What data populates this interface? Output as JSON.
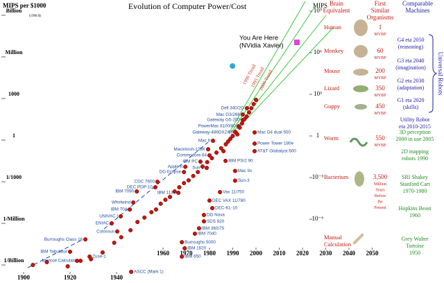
{
  "chart_data": {
    "type": "scatter",
    "title": "Evolution of Computer Power/Cost",
    "ylabel": "MIPS per $1000",
    "ylabel_note": "(1998 $)",
    "y2label": "MIPS",
    "log_scale": true,
    "xlim": [
      1890,
      2050
    ],
    "xticks": [
      1900,
      1920,
      1940,
      1960,
      1970,
      1980,
      1990,
      2000,
      2010,
      2020,
      2030,
      2040,
      2050
    ],
    "ylim": [
      1e-10,
      10000000000.0
    ],
    "yticks": [
      {
        "value": 1000000000.0,
        "label": "Billion"
      },
      {
        "value": 1000000.0,
        "label": "Million"
      },
      1000,
      1,
      {
        "value": 0.001,
        "label": "1/1000"
      },
      {
        "value": 1e-06,
        "label": "1/Million"
      },
      {
        "value": 1e-09,
        "label": "1/Billion"
      }
    ],
    "y2lim": [
      1e-10,
      10000000000.0
    ],
    "y2ticks": [
      {
        "value": 1000000000.0,
        "label": "10⁹"
      },
      {
        "value": 1000000.0,
        "label": "10⁶"
      },
      {
        "value": 1000,
        "label": "10³"
      },
      1,
      {
        "value": 0.001,
        "label": "10⁻³"
      },
      {
        "value": 1e-06,
        "label": "10⁻⁶"
      }
    ],
    "color": "#c8160e",
    "label_color": "#1f4a9a",
    "points": {
      "labels": [
        "Dell 340/2G",
        "Mac G3/266",
        "Gateway G5-200",
        "PowerMac 8100/80",
        "Gateway-486DX2/66",
        "Mac II",
        "Macintosh-128K",
        "Commodore 64",
        "IBM PC",
        "Apple II",
        "Sun-2",
        "DG Eclipse",
        "CDC 7600",
        "DEC PDP-10",
        "IBM 1130",
        "IBM 7090",
        "Whirlwind",
        "IBM 704",
        "UNIVAC I",
        "ENIAC",
        "Colossus",
        "Burroughs Class 16",
        "IBM Tabulator",
        "Monroe Calculator",
        "Mac G4 dual 500",
        "Power Tower 180e",
        "AT&T Globalyst 600",
        "IBM PS/2 90",
        "Mac IIx",
        "Sun-3",
        "Vax 11/750",
        "DEC VAX 11/780",
        "DEC-KL-10",
        "DG Nova",
        "SDS 920",
        "IBM 360/75",
        "IBM 7040",
        "Burroughs 5000",
        "IBM 1620",
        "IBM 650",
        "Zuse-1",
        "ASCC (Mark 1)",
        null,
        null,
        null,
        null,
        null,
        null,
        null,
        null,
        null,
        null,
        null,
        null,
        null,
        null,
        null,
        null,
        null,
        null,
        null,
        null,
        null,
        null,
        null,
        null,
        null,
        null,
        null,
        null,
        null,
        null,
        null,
        null,
        null,
        null,
        null,
        null,
        null,
        null,
        null,
        null,
        null,
        null
      ],
      "x": [
        1996.1,
        1994.3,
        1994.3,
        1992.5,
        1991.3,
        1981.5,
        1979.4,
        1980,
        1976.1,
        1969.6,
        1978.8,
        1969,
        1957.6,
        1956.7,
        1966.6,
        1948.7,
        1947.2,
        1945.7,
        1941.8,
        1937.9,
        1940.3,
        1926.6,
        1920,
        1924.5,
        1999.4,
        1999.4,
        1999.4,
        1986.9,
        1991,
        1991,
        1984.5,
        1980,
        1981.2,
        1977.6,
        1977.6,
        1975.5,
        1973.7,
        1968.1,
        1969.3,
        1968.1,
        1928.4,
        1946.3,
        1904,
        1910,
        1919,
        1923,
        1929,
        1934,
        1939,
        1942,
        1946,
        1949,
        1952,
        1955,
        1957,
        1959,
        1961,
        1963,
        1965,
        1967,
        1969,
        1971,
        1973,
        1975,
        1977,
        1979,
        1981,
        1983,
        1985,
        1986,
        1987,
        1988,
        1989,
        1990,
        1991,
        1992,
        1993,
        1994,
        1995,
        1996,
        1997,
        1998,
        1999,
        2000
      ],
      "values": [
        100,
        35,
        14,
        5,
        1.8,
        0.45,
        0.11,
        0.04,
        0.014,
        0.006,
        0.005,
        0.0025,
        0.0005,
        0.0002,
        8e-05,
        0.0001,
        1.6e-05,
        5e-06,
        1.6e-06,
        5e-07,
        1.3e-07,
        3.5e-08,
        4.5e-09,
        1e-09,
        1.8,
        0.28,
        0.08,
        0.016,
        0.003,
        0.0006,
        9e-05,
        2.2e-05,
        6.3e-06,
        2e-06,
        7e-07,
        2.2e-07,
        9e-08,
        2.2e-08,
        8e-09,
        2e-09,
        2e-09,
        1.6e-10,
        5e-10,
        8e-10,
        4e-10,
        1e-09,
        1.3e-09,
        4e-09,
        2e-08,
        5e-08,
        1.6e-07,
        6.3e-07,
        1.3e-06,
        3.2e-06,
        5e-06,
        1.3e-05,
        2.5e-05,
        4e-05,
        0.0001,
        0.0002,
        0.0004,
        0.00063,
        0.0013,
        0.0025,
        0.0063,
        0.013,
        0.025,
        0.063,
        0.13,
        0.08,
        0.25,
        0.4,
        0.63,
        1,
        2,
        1.3,
        4,
        8,
        16,
        25,
        50,
        100,
        200,
        400
      ]
    },
    "highlights": [
      {
        "x": 1989.9,
        "value": 110000,
        "color": "#2aa8dc",
        "shape": "circle"
      },
      {
        "x": 2017.6,
        "value": 5600000,
        "color": "#e044d8",
        "shape": "square",
        "label": [
          "You Are Here",
          "(NVidia Xavier)"
        ]
      }
    ],
    "trend_labels": [
      "1990 Trend",
      "1995 Trend",
      "2000 Trend"
    ],
    "trend_label_color": "#d42a1e"
  },
  "side_panel": {
    "brain_header": [
      "Brain",
      "Equivalent"
    ],
    "organisms_header": [
      "First",
      "Similar",
      "Organisms"
    ],
    "machines_header": [
      "Comparable",
      "Machines"
    ],
    "red": "#c8160e",
    "organisms": [
      {
        "name": "Human",
        "age": [
          "1",
          "MYBP"
        ]
      },
      {
        "name": "Monkey",
        "age": [
          "60",
          "MYBP"
        ]
      },
      {
        "name": "Mouse",
        "age": [
          "200",
          "MYBP"
        ]
      },
      {
        "name": "Lizard",
        "age": [
          "350",
          "MYBP"
        ]
      },
      {
        "name": "Guppy",
        "age": [
          "450",
          "MYBP"
        ]
      },
      {
        "name": "Worm",
        "age": [
          "550",
          "MYBP"
        ]
      },
      {
        "name": "Bacterium",
        "age": [
          "3,500",
          "Million",
          "Years",
          "Before",
          "the",
          "Present"
        ]
      }
    ],
    "manual": [
      "Manual",
      "Calculation"
    ],
    "universal_robots": "Universal Robots",
    "machines": [
      {
        "lines": [
          "G4 eta 2050",
          "(reasoning)"
        ],
        "color": "#1a1aa6"
      },
      {
        "lines": [
          "G3 eta 2040",
          "(imagination)"
        ],
        "color": "#1a1aa6"
      },
      {
        "lines": [
          "G2 eta 2030",
          "(adaptation)"
        ],
        "color": "#1a1aa6"
      },
      {
        "lines": [
          "G1 eta 2020",
          "(skills)"
        ],
        "color": "#1a1aa6"
      },
      {
        "lines": [
          "Utility Robot",
          "eta 2010-2015"
        ],
        "color": "#1a1aa6"
      },
      {
        "lines": [
          "3D perception",
          "2000 in use 2005"
        ],
        "color": "#1f8a1f"
      },
      {
        "lines": [
          "2D mapping",
          "robots 1990"
        ],
        "color": "#1f8a1f"
      },
      {
        "lines": [
          "SRI Shakey",
          "Stanford Cart",
          "1970-1980"
        ],
        "color": "#1f8a1f"
      },
      {
        "lines": [
          "Hopkins Beast",
          "1960"
        ],
        "color": "#1f8a1f"
      },
      {
        "lines": [
          "Grey Walter",
          "Tortoise",
          "1950"
        ],
        "color": "#1f8a1f"
      }
    ]
  }
}
